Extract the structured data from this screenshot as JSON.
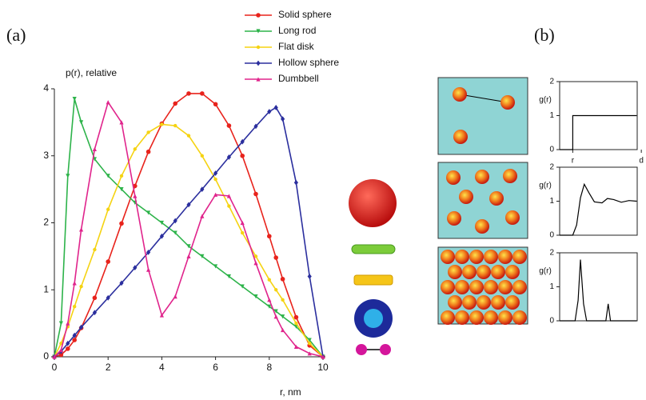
{
  "panels": [
    "(a)",
    "(b)"
  ],
  "chart_data": [
    {
      "type": "line",
      "ylabel": "p(r), relative",
      "xlabel": "r, nm",
      "x": [
        0,
        0.25,
        0.5,
        0.75,
        1,
        1.5,
        2,
        2.5,
        3,
        3.5,
        4,
        4.5,
        5,
        5.5,
        6,
        6.5,
        7,
        7.5,
        8,
        8.25,
        8.5,
        9,
        9.5,
        10
      ],
      "xlim": [
        0,
        10
      ],
      "xticks": [
        0,
        2,
        4,
        6,
        8,
        10
      ],
      "ylim": [
        0,
        4
      ],
      "yticks": [
        0,
        1,
        2,
        3,
        4
      ],
      "series": [
        {
          "name": "Solid sphere",
          "color": "#e8231c",
          "marker": "circle",
          "values": [
            0,
            0.03,
            0.12,
            0.25,
            0.43,
            0.88,
            1.42,
            1.99,
            2.55,
            3.06,
            3.48,
            3.78,
            3.93,
            3.93,
            3.77,
            3.45,
            3.0,
            2.43,
            1.8,
            1.48,
            1.16,
            0.59,
            0.17,
            0
          ]
        },
        {
          "name": "Long rod",
          "color": "#2db34a",
          "marker": "tri-down",
          "values": [
            0,
            0.5,
            2.7,
            3.85,
            3.5,
            2.95,
            2.7,
            2.5,
            2.3,
            2.15,
            2.0,
            1.85,
            1.65,
            1.5,
            1.35,
            1.2,
            1.05,
            0.9,
            0.75,
            0.68,
            0.6,
            0.45,
            0.25,
            0
          ]
        },
        {
          "name": "Flat disk",
          "color": "#f5d312",
          "marker": "dot",
          "values": [
            0,
            0.2,
            0.45,
            0.75,
            1.05,
            1.6,
            2.2,
            2.7,
            3.1,
            3.35,
            3.47,
            3.45,
            3.3,
            3.0,
            2.65,
            2.25,
            1.85,
            1.5,
            1.15,
            1.0,
            0.85,
            0.5,
            0.2,
            0
          ]
        },
        {
          "name": "Hollow sphere",
          "color": "#2b2f9e",
          "marker": "diamond",
          "values": [
            0,
            0.08,
            0.2,
            0.32,
            0.44,
            0.66,
            0.88,
            1.1,
            1.33,
            1.56,
            1.8,
            2.03,
            2.27,
            2.5,
            2.74,
            2.98,
            3.21,
            3.44,
            3.66,
            3.72,
            3.55,
            2.6,
            1.2,
            0
          ]
        },
        {
          "name": "Dumbbell",
          "color": "#e0248c",
          "marker": "tri-up",
          "values": [
            0,
            0.1,
            0.5,
            1.1,
            1.9,
            3.1,
            3.8,
            3.5,
            2.4,
            1.3,
            0.62,
            0.9,
            1.5,
            2.1,
            2.42,
            2.4,
            2.0,
            1.4,
            0.85,
            0.6,
            0.4,
            0.15,
            0.05,
            0
          ]
        }
      ]
    },
    {
      "type": "line",
      "ylabel": "g(r)",
      "xlim": [
        0,
        1.1
      ],
      "ylim": [
        0,
        2
      ],
      "yticks": [
        0,
        1,
        2
      ],
      "xticks": [
        {
          "value": 0.17,
          "label": "r"
        },
        {
          "value": 1.06,
          "label": "d"
        }
      ],
      "series": [
        {
          "color": "#000000",
          "x": [
            0,
            0.17,
            0.17,
            1
          ],
          "values": [
            0,
            0,
            1,
            1
          ]
        }
      ]
    },
    {
      "type": "line",
      "ylabel": "g(r)",
      "xlim": [
        0,
        1.1
      ],
      "ylim": [
        0,
        2
      ],
      "yticks": [
        0,
        1,
        2
      ],
      "series": [
        {
          "color": "#000000",
          "x": [
            0,
            0.17,
            0.22,
            0.27,
            0.32,
            0.38,
            0.45,
            0.55,
            0.62,
            0.7,
            0.8,
            0.9,
            1
          ],
          "values": [
            0,
            0,
            0.3,
            1.1,
            1.5,
            1.25,
            0.98,
            0.95,
            1.08,
            1.05,
            0.97,
            1.02,
            1.0
          ]
        }
      ]
    },
    {
      "type": "line",
      "ylabel": "g(r)",
      "xlim": [
        0,
        1.1
      ],
      "ylim": [
        0,
        2
      ],
      "yticks": [
        0,
        1,
        2
      ],
      "series": [
        {
          "color": "#000000",
          "x": [
            0,
            0.2,
            0.24,
            0.27,
            0.31,
            0.35,
            0.6,
            0.63,
            0.66,
            1
          ],
          "values": [
            0,
            0,
            0.6,
            1.8,
            0.5,
            0,
            0,
            0.5,
            0,
            0
          ]
        }
      ]
    }
  ]
}
